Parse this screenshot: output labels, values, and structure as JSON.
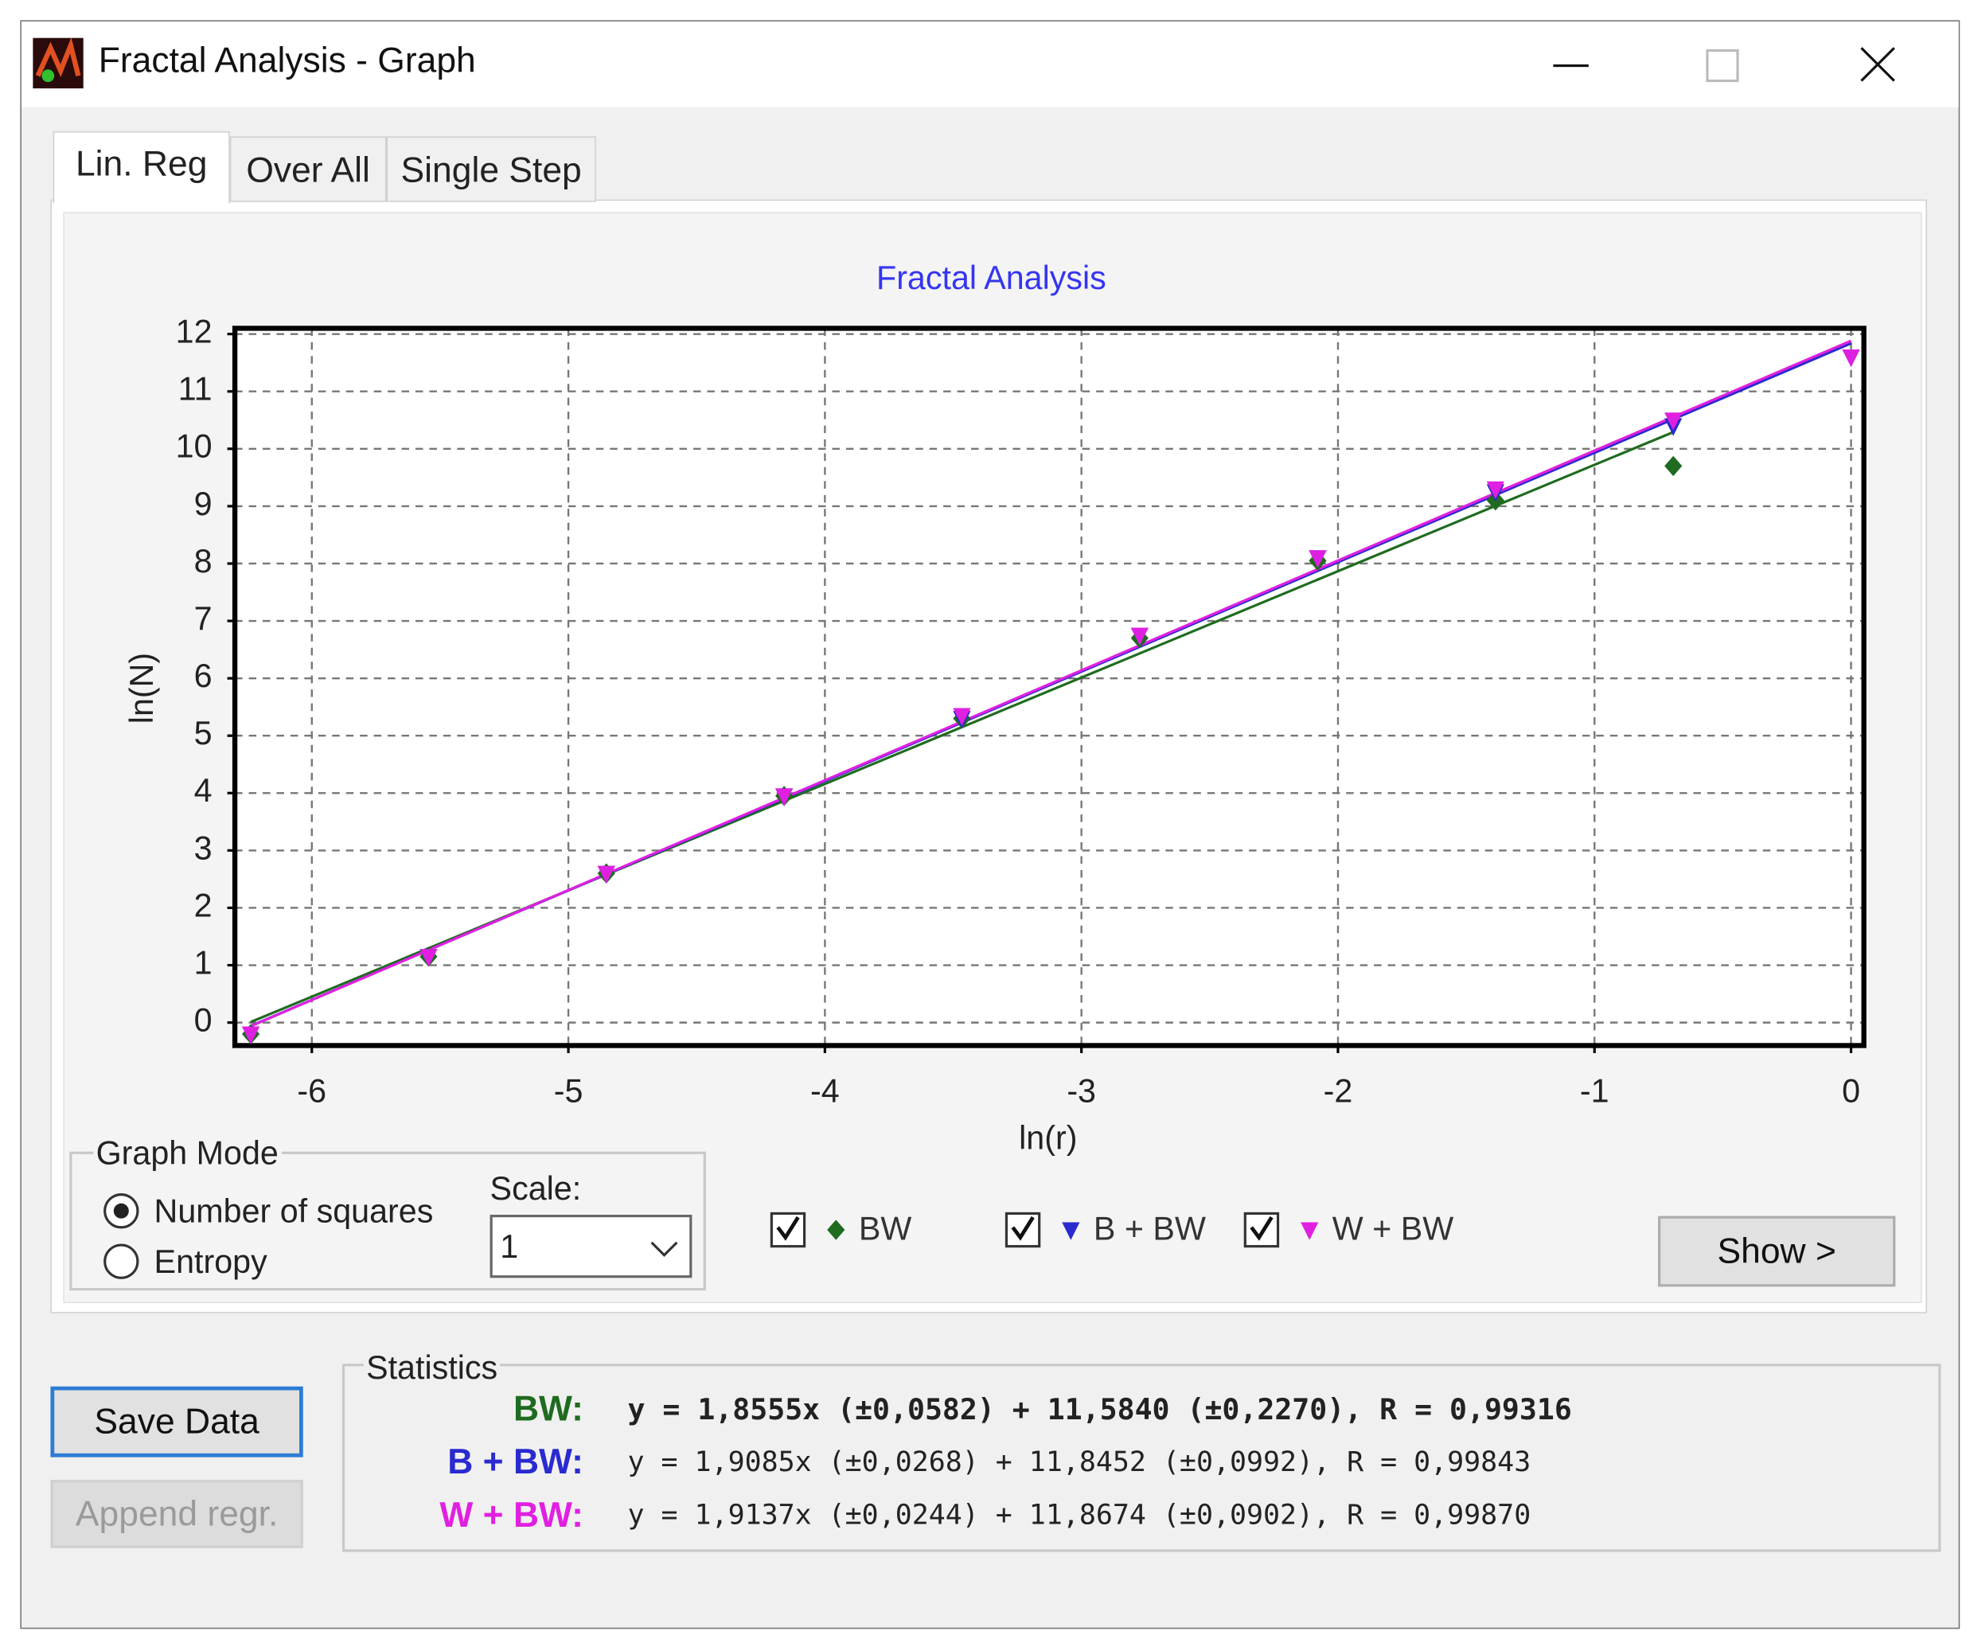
{
  "window": {
    "title": "Fractal Analysis - Graph"
  },
  "tabs": [
    "Lin. Reg",
    "Over All",
    "Single Step"
  ],
  "chart_data": {
    "type": "scatter",
    "title": "Fractal Analysis",
    "x_label": "ln(r)",
    "y_label": "ln(N)",
    "x": [
      -6.238,
      -5.545,
      -4.852,
      -4.159,
      -3.466,
      -2.773,
      -2.079,
      -1.386,
      -0.693,
      0
    ],
    "series": [
      {
        "name": "BW",
        "color": "#1f6b1f",
        "marker": "diamond",
        "values": [
          -0.2,
          1.15,
          2.6,
          3.95,
          5.3,
          6.7,
          8.05,
          9.1,
          9.7,
          null
        ]
      },
      {
        "name": "B + BW",
        "color": "#2a2ad0",
        "marker": "triangle-down",
        "values": [
          -0.2,
          1.15,
          2.6,
          3.95,
          5.3,
          6.75,
          8.1,
          9.25,
          10.4,
          11.6
        ]
      },
      {
        "name": "W + BW",
        "color": "#e020e0",
        "marker": "triangle-down",
        "values": [
          -0.2,
          1.15,
          2.6,
          3.95,
          5.35,
          6.75,
          8.1,
          9.3,
          10.5,
          11.6
        ]
      }
    ],
    "xlim": [
      -6.3,
      0.05
    ],
    "ylim": [
      -0.4,
      12.1
    ],
    "xticks": [
      -6,
      -5,
      -4,
      -3,
      -2,
      -1,
      0
    ],
    "yticks": [
      0,
      1,
      2,
      3,
      4,
      5,
      6,
      7,
      8,
      9,
      10,
      11,
      12
    ],
    "grid": true
  },
  "graph_mode": {
    "title": "Graph Mode",
    "options": [
      "Number of squares",
      "Entropy"
    ],
    "scale_label": "Scale:",
    "scale_value": "1"
  },
  "show_button": "Show >",
  "statistics": {
    "title": "Statistics",
    "rows": [
      {
        "label": "BW:",
        "text": "y = 1,8555x (±0,0582) + 11,5840 (±0,2270), R = 0,99316"
      },
      {
        "label": "B + BW:",
        "text": "y = 1,9085x (±0,0268) + 11,8452 (±0,0992), R = 0,99843"
      },
      {
        "label": "W + BW:",
        "text": "y = 1,9137x (±0,0244) + 11,8674 (±0,0902), R = 0,99870"
      }
    ]
  },
  "buttons": {
    "save": "Save Data",
    "append": "Append regr."
  }
}
